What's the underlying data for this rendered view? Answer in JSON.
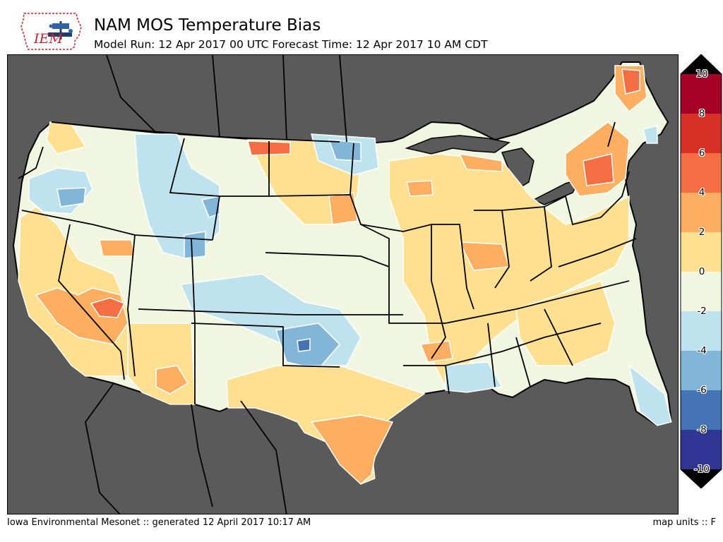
{
  "header": {
    "logo_text": "IEM",
    "title": "NAM MOS Temperature Bias",
    "subtitle": "Model Run: 12 Apr 2017 00 UTC Forecast Time: 12 Apr 2017 10 AM CDT"
  },
  "colorbar": {
    "labels": [
      "10",
      "8",
      "6",
      "4",
      "2",
      "0",
      "-2",
      "-4",
      "-6",
      "-8",
      "-10"
    ],
    "colors": [
      "#a50026",
      "#d73027",
      "#f46d43",
      "#fdae61",
      "#fee090",
      "#f1f6e0",
      "#bfe3ee",
      "#82b6d8",
      "#4574b4",
      "#313695"
    ],
    "over_color": "#000000",
    "under_color": "#000000"
  },
  "map": {
    "background_color": "#5a5a5a",
    "land_base_color": "#f1f6e0"
  },
  "footer": {
    "left": "Iowa Environmental Mesonet :: generated 12 April 2017 10:17 AM",
    "right": "map units :: F"
  }
}
